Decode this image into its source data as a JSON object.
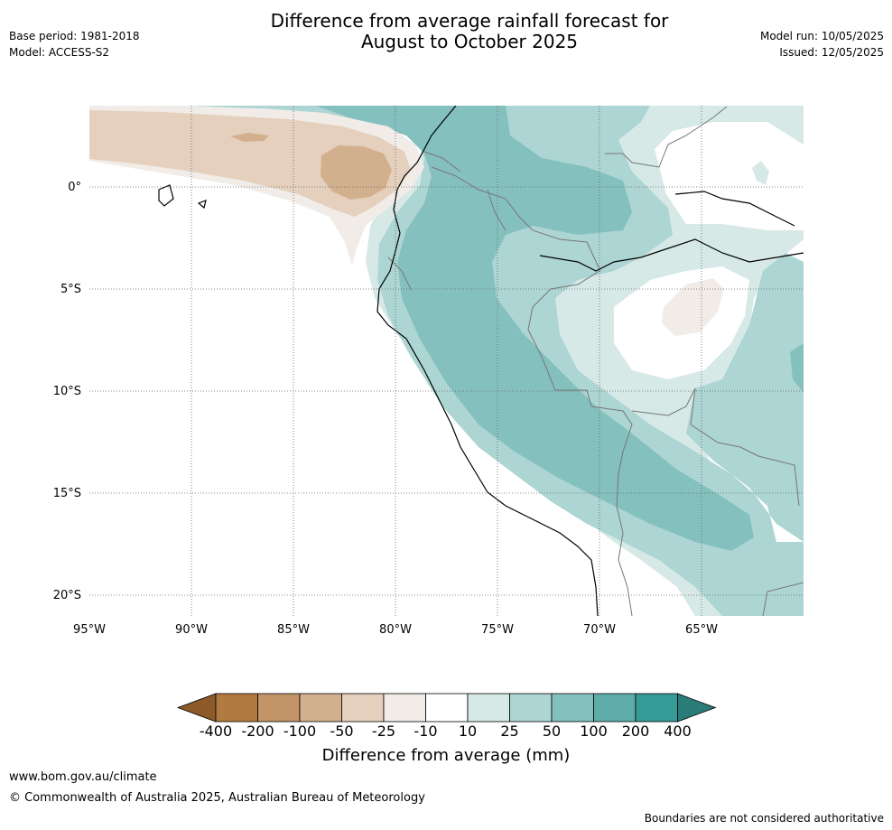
{
  "title_line1": "Difference from average rainfall forecast for",
  "title_line2": "August to October 2025",
  "meta_left": {
    "base_period": "Base period: 1981-2018",
    "model": "Model: ACCESS-S2"
  },
  "meta_right": {
    "model_run": "Model run: 10/05/2025",
    "issued": "Issued: 12/05/2025"
  },
  "map": {
    "lat_labels": [
      "0°",
      "5°S",
      "10°S",
      "15°S",
      "20°S"
    ],
    "lon_labels": [
      "95°W",
      "90°W",
      "85°W",
      "80°W",
      "75°W",
      "70°W",
      "65°W"
    ],
    "legend": {
      "ticks": [
        "-400",
        "-200",
        "-100",
        "-50",
        "-25",
        "-10",
        "10",
        "25",
        "50",
        "100",
        "200",
        "400"
      ],
      "colors": [
        "#8c5a28",
        "#b07a40",
        "#c29468",
        "#d2b08e",
        "#e4d0bc",
        "#f1ece7",
        "#ffffff",
        "#d6e9e7",
        "#acd5d3",
        "#84c0be",
        "#5eadab",
        "#379b97",
        "#2a7c79"
      ],
      "label": "Difference from average (mm)"
    }
  },
  "footer": {
    "url": "www.bom.gov.au/climate",
    "copyright": "© Commonwealth of Australia 2025, Australian Bureau of Meteorology",
    "disclaimer": "Boundaries are not considered authoritative"
  }
}
